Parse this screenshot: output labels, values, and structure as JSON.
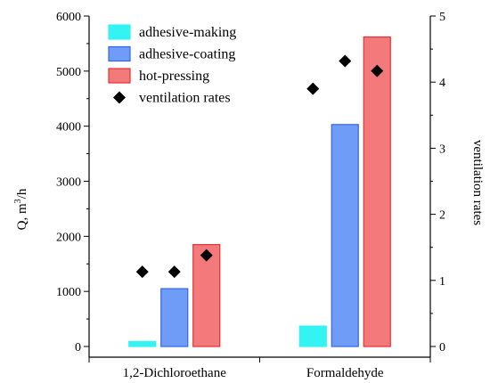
{
  "chart_data": {
    "type": "bar",
    "categories": [
      "1,2-Dichloroethane",
      "Formaldehyde"
    ],
    "series": [
      {
        "name": "adhesive-making",
        "values": [
          90,
          370
        ],
        "color": "#33f3f3",
        "stroke": "#33f3f3"
      },
      {
        "name": "adhesive-coating",
        "values": [
          1050,
          4030
        ],
        "color": "#6f9cf7",
        "stroke": "#3366ee"
      },
      {
        "name": "hot-pressing",
        "values": [
          1850,
          5620
        ],
        "color": "#f4797b",
        "stroke": "#e53333"
      }
    ],
    "secondary_series": {
      "name": "ventilation rates",
      "marker": "diamond",
      "color": "#000000",
      "values": [
        [
          1.13,
          1.13,
          1.38
        ],
        [
          3.9,
          4.32,
          4.17
        ]
      ]
    },
    "ylabel": "Q, m",
    "ylabel_sup": "3",
    "ylabel_suffix": "/h",
    "y2label": "ventilation rates",
    "ylim": [
      0,
      6000
    ],
    "y2lim": [
      0,
      5
    ],
    "yticks": [
      "0",
      "1000",
      "2000",
      "3000",
      "4000",
      "5000",
      "6000"
    ],
    "y2ticks": [
      "0",
      "1",
      "2",
      "3",
      "4",
      "5"
    ],
    "grid": false,
    "legend_position": "top-left"
  }
}
